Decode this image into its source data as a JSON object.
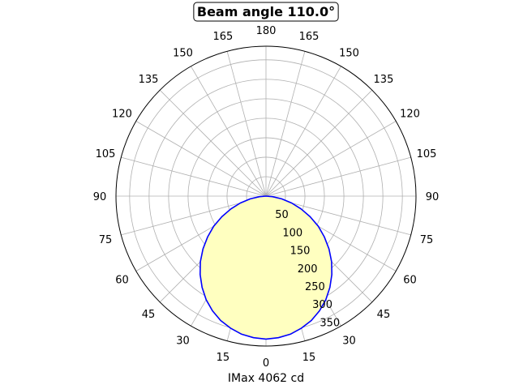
{
  "chart_data": {
    "type": "polar",
    "title": "Beam angle 110.0°",
    "xlabel": "IMax 4062 cd",
    "theta_ticklabels": [
      "0",
      "15",
      "30",
      "45",
      "60",
      "75",
      "90",
      "105",
      "120",
      "135",
      "150",
      "165",
      "180"
    ],
    "r_ticklabels": [
      "50",
      "100",
      "150",
      "200",
      "250",
      "300",
      "350"
    ],
    "r_ticks": [
      50,
      100,
      150,
      200,
      250,
      300,
      350
    ],
    "rlim": [
      0,
      385
    ],
    "grid": true,
    "series": [
      {
        "angles_deg": [
          -90,
          -85,
          -80,
          -75,
          -70,
          -65,
          -60,
          -55,
          -50,
          -45,
          -40,
          -35,
          -30,
          -25,
          -20,
          -15,
          -10,
          -5,
          0,
          5,
          10,
          15,
          20,
          25,
          30,
          35,
          40,
          45,
          50,
          55,
          60,
          65,
          70,
          75,
          80,
          85,
          90
        ],
        "values": [
          0,
          17,
          41,
          68,
          96,
          125,
          155,
          183,
          211,
          238,
          263,
          286,
          307,
          325,
          340,
          351,
          360,
          365,
          367,
          365,
          360,
          351,
          340,
          325,
          307,
          286,
          263,
          238,
          211,
          183,
          155,
          125,
          96,
          68,
          41,
          17,
          0
        ],
        "line_color": "#0000ff",
        "fill_color": "#ffffc0"
      }
    ]
  }
}
